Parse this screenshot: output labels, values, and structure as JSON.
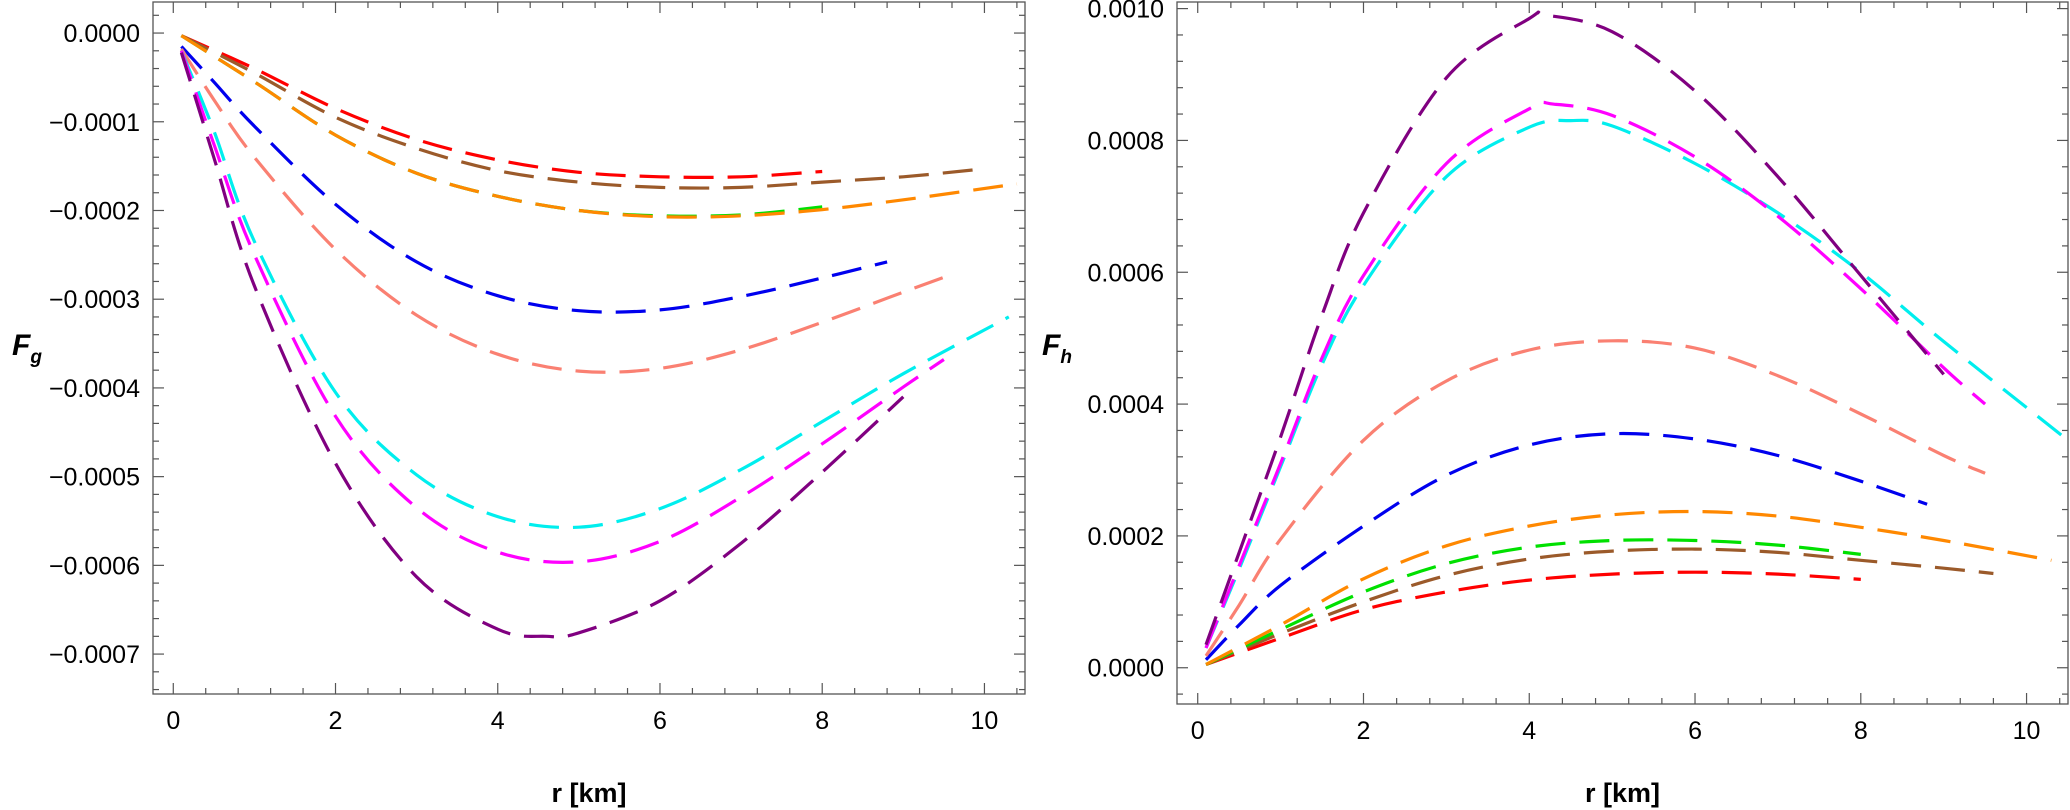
{
  "chart_data": [
    {
      "type": "line",
      "xlabel": "r [km]",
      "ylabel_main": "F",
      "ylabel_sub": "g",
      "xlim": [
        -0.25,
        10.5
      ],
      "ylim": [
        -0.000745,
        3.5e-05
      ],
      "xticks": [
        0,
        2,
        4,
        6,
        8,
        10
      ],
      "xtick_labels": [
        "0",
        "2",
        "4",
        "6",
        "8",
        "10"
      ],
      "yticks": [
        0.0,
        -0.0001,
        -0.0002,
        -0.0003,
        -0.0004,
        -0.0005,
        -0.0006,
        -0.0007
      ],
      "ytick_labels": [
        "0.0000",
        "-0.0001",
        "-0.0002",
        "-0.0003",
        "-0.0004",
        "-0.0005",
        "-0.0006",
        "-0.0007"
      ],
      "series": [
        {
          "color": "#ff0000",
          "x": [
            0.1,
            1,
            2,
            3,
            4,
            5,
            6,
            7,
            8
          ],
          "y": [
            -3e-06,
            -4e-05,
            -8.5e-05,
            -0.00012,
            -0.000143,
            -0.000157,
            -0.000162,
            -0.000162,
            -0.000156
          ]
        },
        {
          "color": "#9b5a2a",
          "x": [
            0.1,
            1,
            2,
            3,
            4,
            5,
            6,
            7,
            8,
            9,
            10
          ],
          "y": [
            -3e-06,
            -4.5e-05,
            -9.5e-05,
            -0.00013,
            -0.000155,
            -0.000168,
            -0.000174,
            -0.000174,
            -0.000168,
            -0.000162,
            -0.000153
          ]
        },
        {
          "color": "#00e000",
          "x": [
            0.1,
            1,
            2,
            3,
            4,
            5,
            6,
            7,
            8
          ],
          "y": [
            -3e-06,
            -5.5e-05,
            -0.000115,
            -0.000158,
            -0.000184,
            -0.0002,
            -0.000206,
            -0.000205,
            -0.000196
          ]
        },
        {
          "color": "#ff8800",
          "x": [
            0.1,
            1,
            2,
            3,
            4,
            5,
            6,
            7,
            8,
            9,
            10.4
          ],
          "y": [
            -3e-06,
            -5.5e-05,
            -0.000115,
            -0.000158,
            -0.000184,
            -0.0002,
            -0.000207,
            -0.000206,
            -0.000199,
            -0.000188,
            -0.00017
          ]
        },
        {
          "color": "#0000ee",
          "x": [
            0.1,
            0.5,
            1,
            2,
            3,
            4,
            5,
            6,
            7,
            8,
            8.8
          ],
          "y": [
            -1.5e-05,
            -5.5e-05,
            -0.000105,
            -0.000193,
            -0.000258,
            -0.000296,
            -0.000313,
            -0.000312,
            -0.000297,
            -0.000276,
            -0.000258
          ]
        },
        {
          "color": "#fa8072",
          "x": [
            0.1,
            0.5,
            1,
            2,
            3,
            4,
            5,
            6,
            7,
            8,
            9,
            9.6
          ],
          "y": [
            -1.8e-05,
            -7.5e-05,
            -0.00014,
            -0.000244,
            -0.000318,
            -0.000362,
            -0.000381,
            -0.000378,
            -0.000357,
            -0.000326,
            -0.000292,
            -0.000272
          ]
        },
        {
          "color": "#00eeee",
          "x": [
            0.1,
            0.5,
            1,
            2,
            3,
            4,
            5,
            6,
            7,
            8,
            9,
            10.3
          ],
          "y": [
            -2e-05,
            -0.00011,
            -0.000235,
            -0.000405,
            -0.000498,
            -0.000545,
            -0.000557,
            -0.000536,
            -0.000492,
            -0.000438,
            -0.000384,
            -0.00032
          ]
        },
        {
          "color": "#ff00ff",
          "x": [
            0.1,
            0.5,
            1,
            2,
            3,
            4,
            5,
            6,
            7,
            8,
            9,
            9.5
          ],
          "y": [
            -2e-05,
            -0.000125,
            -0.00025,
            -0.000432,
            -0.000535,
            -0.000585,
            -0.000596,
            -0.000573,
            -0.000523,
            -0.000463,
            -0.000399,
            -0.000368
          ]
        },
        {
          "color": "#800080",
          "x": [
            0.1,
            0.5,
            1,
            2,
            3,
            4,
            4.6,
            5,
            6,
            7,
            8,
            9
          ],
          "y": [
            -2.2e-05,
            -0.00014,
            -0.000285,
            -0.000485,
            -0.000613,
            -0.000672,
            -0.00068,
            -0.000676,
            -0.00064,
            -0.000575,
            -0.000495,
            -0.00041
          ]
        }
      ]
    },
    {
      "type": "line",
      "xlabel": "r [km]",
      "ylabel_main": "F",
      "ylabel_sub": "h",
      "xlim": [
        -0.25,
        10.5
      ],
      "ylim": [
        -5.5e-05,
        0.00101
      ],
      "xticks": [
        0,
        2,
        4,
        6,
        8,
        10
      ],
      "xtick_labels": [
        "0",
        "2",
        "4",
        "6",
        "8",
        "10"
      ],
      "yticks": [
        0.0,
        0.0002,
        0.0004,
        0.0006,
        0.0008,
        0.001
      ],
      "ytick_labels": [
        "0.0000",
        "0.0002",
        "0.0004",
        "0.0006",
        "0.0008",
        "0.0010"
      ],
      "series": [
        {
          "color": "#ff0000",
          "x": [
            0.1,
            1,
            2,
            3,
            4,
            5,
            6,
            7,
            8
          ],
          "y": [
            5e-06,
            4.5e-05,
            8.8e-05,
            0.000115,
            0.000133,
            0.000142,
            0.000145,
            0.000142,
            0.000134
          ]
        },
        {
          "color": "#9b5a2a",
          "x": [
            0.1,
            1,
            2,
            3,
            4,
            5,
            6,
            7,
            8,
            9,
            9.6
          ],
          "y": [
            5e-06,
            5.2e-05,
            0.0001,
            0.00014,
            0.000165,
            0.000177,
            0.00018,
            0.000175,
            0.000163,
            0.000151,
            0.000143
          ]
        },
        {
          "color": "#00e000",
          "x": [
            0.1,
            1,
            2,
            3,
            4,
            5,
            6,
            7,
            8
          ],
          "y": [
            5e-06,
            5.8e-05,
            0.000115,
            0.000158,
            0.000183,
            0.000193,
            0.000193,
            0.000186,
            0.000172
          ]
        },
        {
          "color": "#ff8800",
          "x": [
            0.1,
            1,
            2,
            3,
            4,
            5,
            6,
            7,
            8,
            9,
            10.3
          ],
          "y": [
            5e-06,
            6.5e-05,
            0.000135,
            0.000185,
            0.000215,
            0.000232,
            0.000237,
            0.00023,
            0.000213,
            0.000193,
            0.000163
          ]
        },
        {
          "color": "#0000ee",
          "x": [
            0.1,
            0.5,
            1,
            2,
            3,
            4,
            5,
            6,
            7,
            8,
            8.8
          ],
          "y": [
            1.2e-05,
            6.5e-05,
            0.000125,
            0.000215,
            0.000292,
            0.000338,
            0.000355,
            0.000347,
            0.000322,
            0.000283,
            0.000248
          ]
        },
        {
          "color": "#fa8072",
          "x": [
            0.1,
            0.5,
            1,
            2,
            3,
            4,
            5,
            6,
            7,
            8,
            9,
            9.5
          ],
          "y": [
            1.8e-05,
            9.5e-05,
            0.000195,
            0.000345,
            0.000435,
            0.000482,
            0.000496,
            0.000485,
            0.000443,
            0.000385,
            0.000322,
            0.000295
          ]
        },
        {
          "color": "#00eeee",
          "x": [
            0.1,
            0.5,
            1,
            1.5,
            2,
            3,
            4,
            4.5,
            5,
            6,
            7,
            8,
            9,
            10.5
          ],
          "y": [
            3e-05,
            0.00015,
            0.000305,
            0.00046,
            0.00058,
            0.000745,
            0.00082,
            0.00083,
            0.000822,
            0.000765,
            0.00069,
            0.0006,
            0.000495,
            0.000345
          ]
        },
        {
          "color": "#ff00ff",
          "x": [
            0.1,
            0.5,
            1,
            1.5,
            2,
            3,
            4,
            4.3,
            5,
            6,
            7,
            8,
            9,
            9.5
          ],
          "y": [
            3e-05,
            0.000155,
            0.00031,
            0.00047,
            0.000595,
            0.000765,
            0.000848,
            0.000855,
            0.000838,
            0.000775,
            0.000685,
            0.000575,
            0.000455,
            0.0004
          ]
        },
        {
          "color": "#800080",
          "x": [
            0.1,
            0.5,
            1,
            1.5,
            2,
            3,
            4,
            4.2,
            5,
            6,
            7,
            8,
            9
          ],
          "y": [
            3.5e-05,
            0.000175,
            0.00035,
            0.000535,
            0.00069,
            0.000895,
            0.000985,
            0.00099,
            0.000965,
            0.000875,
            0.000745,
            0.000595,
            0.000445
          ]
        }
      ]
    }
  ]
}
